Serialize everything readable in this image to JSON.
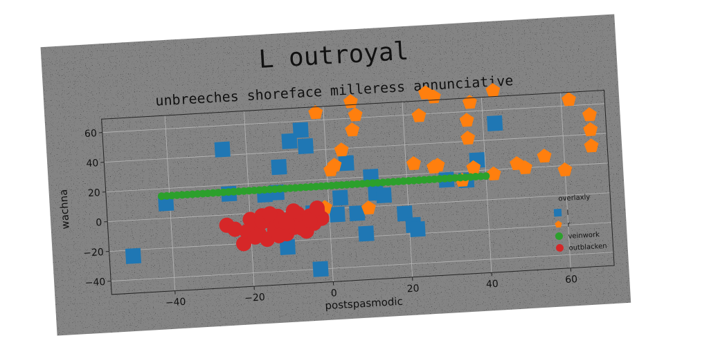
{
  "suptitle": "L outroyal",
  "chart_data": {
    "type": "scatter",
    "title": "unbreeches shoreface milleress annunciative",
    "xlabel": "postspasmodic",
    "ylabel": "wachna",
    "xlim": [
      -56,
      71
    ],
    "ylim": [
      -49,
      69
    ],
    "xticks": [
      -40,
      -20,
      0,
      20,
      40,
      60
    ],
    "yticks": [
      -40,
      -20,
      0,
      20,
      40,
      60
    ],
    "grid": true,
    "legend_title": "overlaxly",
    "legend_position": "lower-right",
    "series": [
      {
        "name": "l",
        "marker": "square",
        "color": "#1f77b4",
        "points": [
          [
            -50,
            -24
          ],
          [
            -26,
            44
          ],
          [
            -41,
            10
          ],
          [
            -25,
            14
          ],
          [
            -12,
            30
          ],
          [
            -9,
            47
          ],
          [
            -6,
            54
          ],
          [
            -5,
            43
          ],
          [
            -13,
            13
          ],
          [
            -16,
            12
          ],
          [
            -11,
            -24
          ],
          [
            -12,
            -12
          ],
          [
            -8,
            -8
          ],
          [
            -4,
            -2
          ],
          [
            -3,
            -40
          ],
          [
            2,
            -4
          ],
          [
            3,
            7
          ],
          [
            7,
            -4
          ],
          [
            9,
            -18
          ],
          [
            11,
            20
          ],
          [
            12,
            9
          ],
          [
            14,
            7
          ],
          [
            19,
            -6
          ],
          [
            21,
            -14
          ],
          [
            22,
            -17
          ],
          [
            30,
            15
          ],
          [
            35,
            14
          ],
          [
            38,
            27
          ],
          [
            43,
            51
          ],
          [
            5,
            30
          ]
        ]
      },
      {
        "name": "r",
        "marker": "pentagon",
        "color": "#ff7f0e",
        "points": [
          [
            -2,
            65
          ],
          [
            7,
            71
          ],
          [
            7,
            52
          ],
          [
            8,
            62
          ],
          [
            4,
            39
          ],
          [
            2,
            29
          ],
          [
            1,
            26
          ],
          [
            -1,
            1
          ],
          [
            10,
            -1
          ],
          [
            22,
            27
          ],
          [
            24,
            59
          ],
          [
            26,
            74
          ],
          [
            28,
            71
          ],
          [
            27,
            24
          ],
          [
            28,
            25
          ],
          [
            36,
            42
          ],
          [
            36,
            54
          ],
          [
            37,
            66
          ],
          [
            37,
            22
          ],
          [
            43,
            73
          ],
          [
            42,
            17
          ],
          [
            48,
            23
          ],
          [
            50,
            20
          ],
          [
            55,
            27
          ],
          [
            60,
            17
          ],
          [
            62,
            64
          ],
          [
            67,
            53
          ],
          [
            67,
            43
          ],
          [
            67,
            32
          ],
          [
            34,
            14
          ]
        ]
      },
      {
        "name": "veinwork",
        "marker": "circle-small",
        "color": "#2ca02c",
        "line_from": [
          -42,
          15
        ],
        "line_to": [
          40,
          16
        ],
        "count": 64
      },
      {
        "name": "outblacken",
        "marker": "circle",
        "color": "#d62728",
        "points": [
          [
            -26,
            -7
          ],
          [
            -24,
            -10
          ],
          [
            -22,
            -20
          ],
          [
            -20,
            -4
          ],
          [
            -19,
            -9
          ],
          [
            -18,
            -14
          ],
          [
            -17,
            -2
          ],
          [
            -16,
            -18
          ],
          [
            -15,
            -6
          ],
          [
            -14,
            -12
          ],
          [
            -13,
            -3
          ],
          [
            -12,
            -9
          ],
          [
            -11,
            -15
          ],
          [
            -10,
            -5
          ],
          [
            -9,
            -11
          ],
          [
            -8,
            -2
          ],
          [
            -7,
            -8
          ],
          [
            -6,
            -14
          ],
          [
            -5,
            -4
          ],
          [
            -4,
            -9
          ],
          [
            -3,
            -1
          ],
          [
            -2,
            -6
          ],
          [
            -9,
            0
          ],
          [
            -13,
            -16
          ],
          [
            -17,
            -6
          ],
          [
            -21,
            -12
          ],
          [
            -7,
            -12
          ],
          [
            -11,
            -7
          ],
          [
            -15,
            -1
          ],
          [
            -19,
            -16
          ],
          [
            -5,
            -7
          ],
          [
            -3,
            1
          ]
        ]
      }
    ]
  }
}
